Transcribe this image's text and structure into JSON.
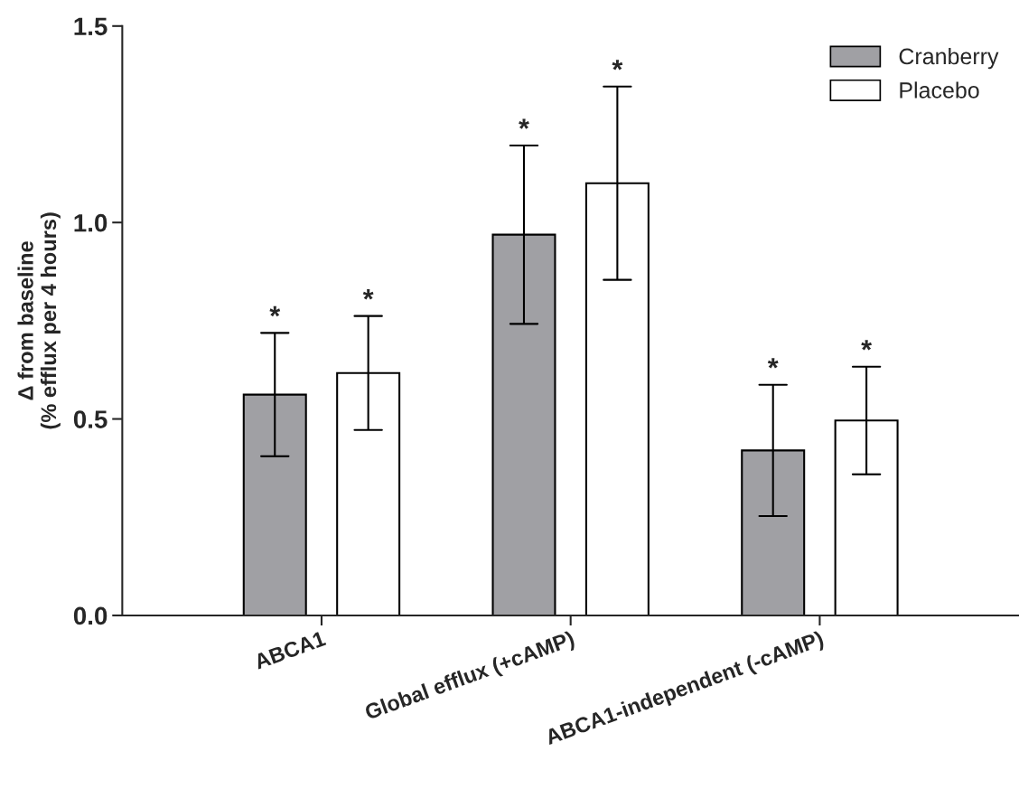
{
  "chart_data": {
    "type": "bar",
    "ylabel": "Δ from baseline\n(% efflux per 4 hours)",
    "categories": [
      "ABCA1",
      "Global efflux (+cAMP)",
      "ABCA1-independent (-cAMP)"
    ],
    "series": [
      {
        "name": "Cranberry",
        "color": "#a0a0a4",
        "values": [
          0.562,
          0.969,
          0.42
        ],
        "errors": [
          0.157,
          0.227,
          0.167
        ]
      },
      {
        "name": "Placebo",
        "color": "#ffffff",
        "values": [
          0.617,
          1.1,
          0.496
        ],
        "errors": [
          0.145,
          0.246,
          0.137
        ]
      }
    ],
    "ylim": [
      0,
      1.5
    ],
    "yticks": [
      {
        "value": 0,
        "label": "0.0"
      },
      0.5,
      {
        "value": 1,
        "label": "1.0"
      },
      1.5
    ],
    "annotations": [
      "*",
      "*",
      "*",
      "*",
      "*",
      "*"
    ],
    "grid": false,
    "legend": "top right"
  }
}
